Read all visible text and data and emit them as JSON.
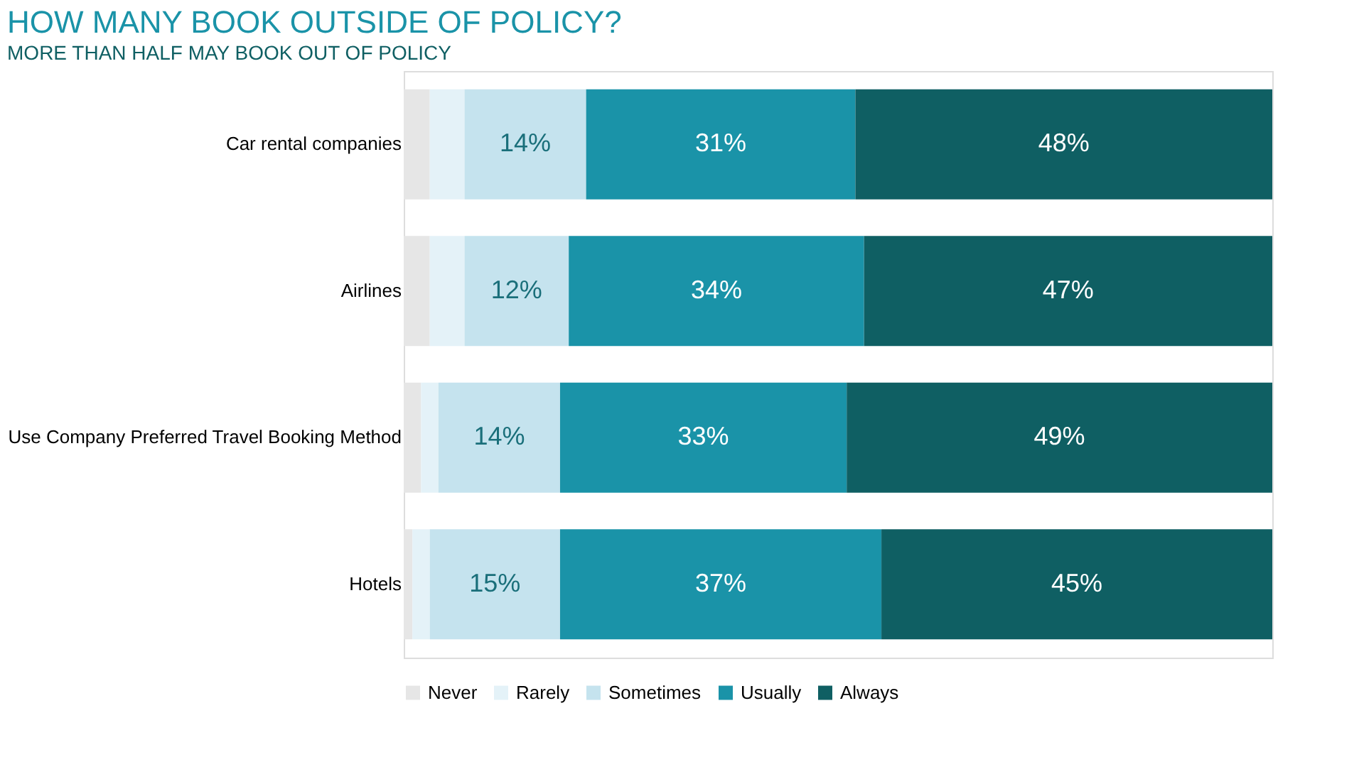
{
  "chart_data": {
    "type": "bar",
    "orientation": "horizontal",
    "stacked": true,
    "title": "HOW MANY BOOK OUTSIDE OF POLICY?",
    "categories": [
      "Car rental companies",
      "Airlines",
      "Use Company Preferred Travel Booking Method",
      "Hotels"
    ],
    "series": [
      {
        "name": "Never",
        "color": "#e6e6e6",
        "values": [
          3,
          3,
          2,
          1
        ],
        "value_labels": [
          null,
          null,
          null,
          null
        ]
      },
      {
        "name": "Rarely",
        "color": "#e4f2f8",
        "values": [
          4,
          4,
          2,
          2
        ],
        "value_labels": [
          null,
          null,
          null,
          null
        ]
      },
      {
        "name": "Sometimes",
        "color": "#c5e3ee",
        "values": [
          14,
          12,
          14,
          15
        ],
        "value_labels": [
          "14%",
          "12%",
          "14%",
          "15%"
        ]
      },
      {
        "name": "Usually",
        "color": "#1a93a8",
        "values": [
          31,
          34,
          33,
          37
        ],
        "value_labels": [
          "31%",
          "34%",
          "33%",
          "37%"
        ]
      },
      {
        "name": "Always",
        "color": "#0f5f63",
        "values": [
          48,
          47,
          49,
          45
        ],
        "value_labels": [
          "48%",
          "47%",
          "49%",
          "45%"
        ]
      }
    ],
    "legend": "bottom",
    "grid": false,
    "tick_labels": "y",
    "annotations": [
      "MORE THAN HALF MAY BOOK OUT OF POLICY"
    ]
  }
}
